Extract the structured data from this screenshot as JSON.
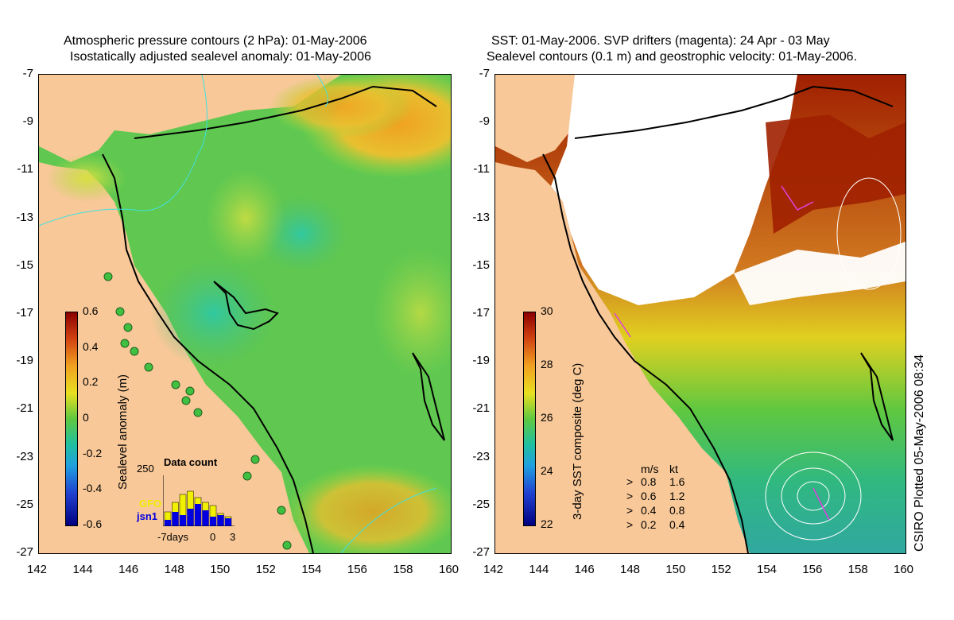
{
  "left_panel": {
    "title_line1": "Atmospheric pressure contours (2 hPa): 01-May-2006",
    "title_line2": "Isostatically adjusted sealevel anomaly: 01-May-2006",
    "colorbar": {
      "label": "Sealevel anomaly (m)",
      "ticks": [
        "0.6",
        "0.4",
        "0.2",
        "0",
        "-0.2",
        "-0.4",
        "-0.6"
      ],
      "range": [
        -0.6,
        0.6
      ]
    },
    "inset": {
      "title": "Data count",
      "ymax_label": "250",
      "xlabels": [
        "-7days",
        "0",
        "3"
      ],
      "series": [
        {
          "name": "GFO",
          "color": "#f0f000"
        },
        {
          "name": "jsn1",
          "color": "#0000e0"
        }
      ]
    }
  },
  "right_panel": {
    "title_line1": "SST: 01-May-2006. SVP drifters (magenta): 24 Apr - 03 May",
    "title_line2": "Sealevel contours (0.1 m) and geostrophic velocity: 01-May-2006.",
    "colorbar": {
      "label": "3-day SST composite (deg C)",
      "ticks": [
        "30",
        "28",
        "26",
        "24",
        "22"
      ],
      "range": [
        22,
        30
      ]
    },
    "velocity_legend": {
      "header_ms": "m/s",
      "header_kt": "kt",
      "rows": [
        {
          "ms": "0.8",
          "kt": "1.6"
        },
        {
          "ms": "0.6",
          "kt": "1.2"
        },
        {
          "ms": "0.4",
          "kt": "0.8"
        },
        {
          "ms": "0.2",
          "kt": "0.4"
        }
      ]
    }
  },
  "axes": {
    "lat_labels": [
      "-7",
      "-9",
      "-11",
      "-13",
      "-15",
      "-17",
      "-19",
      "-21",
      "-23",
      "-25",
      "-27"
    ],
    "lon_labels": [
      "142",
      "144",
      "146",
      "148",
      "150",
      "152",
      "154",
      "156",
      "158",
      "160"
    ]
  },
  "credit": "CSIRO Plotted 05-May-2006 08:34",
  "colors": {
    "land": "#f8c898",
    "ocean_low": "#30c070",
    "ocean_mid": "#80d040",
    "ocean_high": "#f0a020",
    "cloud": "#ffffff",
    "sst_warm": "#a01800"
  }
}
